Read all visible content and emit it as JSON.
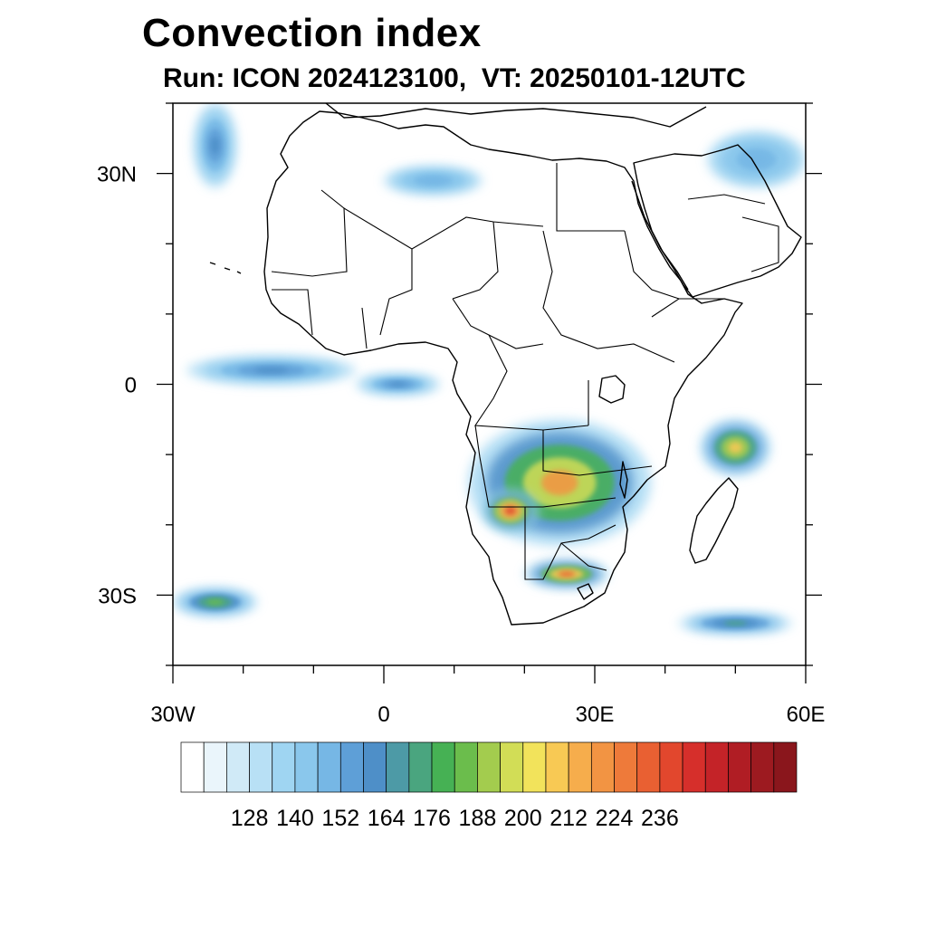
{
  "title": "Convection index",
  "subtitle": "Run: ICON 2024123100,  VT: 20250101-12UTC",
  "map": {
    "extent": {
      "lon": [
        -30,
        60
      ],
      "lat": [
        -40,
        40
      ]
    },
    "lat_ticks": [
      {
        "value": 30,
        "label": "30N"
      },
      {
        "value": 0,
        "label": "0"
      },
      {
        "value": -30,
        "label": "30S"
      }
    ],
    "lon_ticks": [
      {
        "value": -30,
        "label": "30W"
      },
      {
        "value": 0,
        "label": "0"
      },
      {
        "value": 30,
        "label": "30E"
      },
      {
        "value": 60,
        "label": "60E"
      }
    ],
    "minor_lat": [
      40,
      20,
      10,
      -10,
      -20,
      -40
    ],
    "minor_lon": [
      -20,
      -10,
      10,
      20,
      40,
      50
    ],
    "convection_regions": [
      {
        "name": "south-central-africa",
        "lon": 25,
        "lat": -14,
        "rx": 13,
        "ry": 9,
        "level": 196
      },
      {
        "name": "angola-namibia-core",
        "lon": 18,
        "lat": -18,
        "rx": 4,
        "ry": 3,
        "level": 212
      },
      {
        "name": "south-africa-band",
        "lon": 26,
        "lat": -27,
        "rx": 6,
        "ry": 2,
        "level": 204
      },
      {
        "name": "madagascar-east",
        "lon": 50,
        "lat": -9,
        "rx": 5,
        "ry": 4,
        "level": 188
      },
      {
        "name": "gulf-of-guinea",
        "lon": -16,
        "lat": 2,
        "rx": 12,
        "ry": 2,
        "level": 150
      },
      {
        "name": "central-atlantic",
        "lon": 2,
        "lat": 0,
        "rx": 6,
        "ry": 1.5,
        "level": 150
      },
      {
        "name": "south-atlantic",
        "lon": -24,
        "lat": -31,
        "rx": 6,
        "ry": 2,
        "level": 170
      },
      {
        "name": "north-atlantic-band",
        "lon": -24,
        "lat": 34,
        "rx": 3,
        "ry": 6,
        "level": 150
      },
      {
        "name": "sahara-band",
        "lon": 7,
        "lat": 29,
        "rx": 7,
        "ry": 2,
        "level": 145
      },
      {
        "name": "middle-east",
        "lon": 53,
        "lat": 32,
        "rx": 7,
        "ry": 4,
        "level": 145
      },
      {
        "name": "indian-ocean-band",
        "lon": 50,
        "lat": -34,
        "rx": 8,
        "ry": 1.5,
        "level": 160
      }
    ]
  },
  "colorbar": {
    "colors": [
      "#ffffff",
      "#eaf5fb",
      "#d0eaf7",
      "#b8e0f5",
      "#9fd5f2",
      "#8ac7ec",
      "#76b7e5",
      "#5e9fd7",
      "#4e8fc8",
      "#4d9aa6",
      "#4aa57f",
      "#46b154",
      "#6bbd4c",
      "#a3cc4e",
      "#d2dd56",
      "#f2e35b",
      "#f8c954",
      "#f6ad4c",
      "#f29443",
      "#ee7a3a",
      "#e96032",
      "#e2472d",
      "#d62f2b",
      "#c42328",
      "#b01d24",
      "#9d1a20",
      "#8a161c"
    ],
    "tick_labels": [
      "128",
      "140",
      "152",
      "164",
      "176",
      "188",
      "200",
      "212",
      "224",
      "236"
    ]
  }
}
